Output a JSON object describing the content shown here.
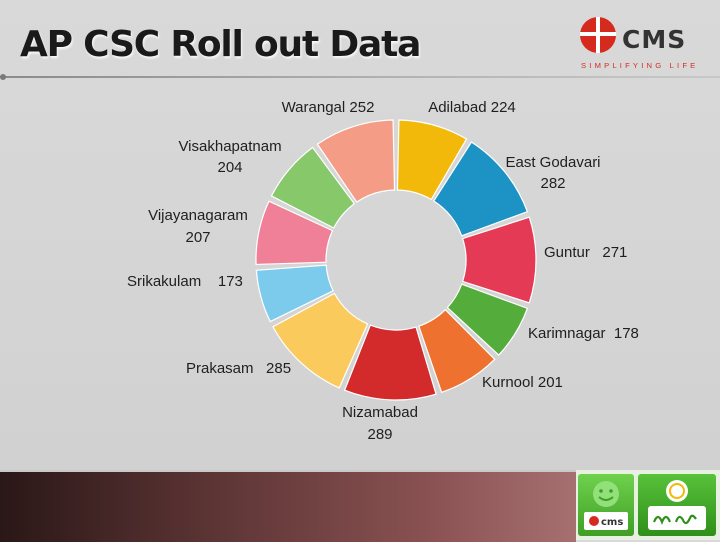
{
  "slide": {
    "title": "AP CSC Roll out Data"
  },
  "logo": {
    "wordmark": "CMS",
    "tagline": "SIMPLIFYING LIFE"
  },
  "footer_logos": {
    "mini_wordmark": "cms"
  },
  "colors": {
    "cms_red": "#d42b1e",
    "band": "#6b3a3a",
    "green": "#4caf2f"
  },
  "chart_data": {
    "type": "pie",
    "style": "donut",
    "title": "",
    "slices": [
      {
        "label": "Adilabad",
        "value": 224,
        "color": "#f2b90a",
        "text": "Adilabad 224"
      },
      {
        "label": "East Godavari",
        "value": 282,
        "color": "#1c93c4",
        "text": "East Godavari 282"
      },
      {
        "label": "Guntur",
        "value": 271,
        "color": "#e43a55",
        "text": "Guntur   271"
      },
      {
        "label": "Karimnagar",
        "value": 178,
        "color": "#54ad3a",
        "text": "Karimnagar  178"
      },
      {
        "label": "Kurnool",
        "value": 201,
        "color": "#ef7130",
        "text": "Kurnool 201"
      },
      {
        "label": "Nizamabad",
        "value": 289,
        "color": "#d32a2c",
        "text": "Nizamabad 289"
      },
      {
        "label": "Prakasam",
        "value": 285,
        "color": "#fbca5c",
        "text": "Prakasam   285"
      },
      {
        "label": "Srikakulam",
        "value": 173,
        "color": "#7ccbec",
        "text": "Srikakulam    173"
      },
      {
        "label": "Vijayanagaram",
        "value": 207,
        "color": "#f07f98",
        "text": "Vijayanagaram 207"
      },
      {
        "label": "Visakhapatnam",
        "value": 204,
        "color": "#86c86a",
        "text": "Visakhapatnam 204"
      },
      {
        "label": "Warangal",
        "value": 252,
        "color": "#f59c86",
        "text": "Warangal 252"
      }
    ]
  }
}
